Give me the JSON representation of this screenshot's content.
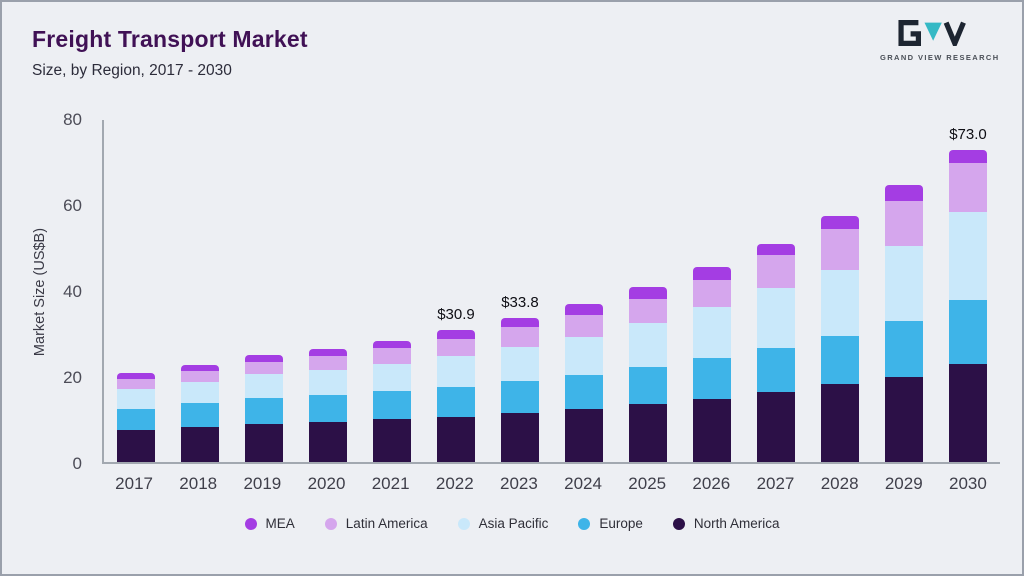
{
  "header": {
    "title": "Freight Transport Market",
    "subtitle": "Size, by Region, 2017 - 2030",
    "logo_text": "GRAND VIEW RESEARCH"
  },
  "chart_data": {
    "type": "bar",
    "stacked": true,
    "title": "Freight Transport Market Size, by Region, 2017 - 2030",
    "xlabel": "",
    "ylabel": "Market Size (US$B)",
    "ylim": [
      0,
      80
    ],
    "yticks": [
      0,
      20,
      40,
      60,
      80
    ],
    "grid": false,
    "legend_position": "bottom",
    "categories": [
      "2017",
      "2018",
      "2019",
      "2020",
      "2021",
      "2022",
      "2023",
      "2024",
      "2025",
      "2026",
      "2027",
      "2028",
      "2029",
      "2030"
    ],
    "series": [
      {
        "name": "North America",
        "color": "#2c1047",
        "values": [
          7.5,
          8.2,
          9.0,
          9.3,
          10.0,
          10.5,
          11.5,
          12.3,
          13.5,
          14.8,
          16.3,
          18.2,
          20.0,
          23.0
        ]
      },
      {
        "name": "Europe",
        "color": "#3eb4e8",
        "values": [
          5.0,
          5.5,
          6.0,
          6.3,
          6.5,
          7.0,
          7.5,
          8.0,
          8.7,
          9.5,
          10.4,
          11.3,
          13.0,
          15.0
        ]
      },
      {
        "name": "Asia Pacific",
        "color": "#c9e8fa",
        "values": [
          4.5,
          5.0,
          5.5,
          6.0,
          6.5,
          7.2,
          8.0,
          9.0,
          10.3,
          12.0,
          14.1,
          15.5,
          17.5,
          20.5
        ]
      },
      {
        "name": "Latin America",
        "color": "#d5a6ed",
        "values": [
          2.5,
          2.7,
          3.0,
          3.3,
          3.6,
          4.0,
          4.5,
          5.0,
          5.7,
          6.2,
          7.7,
          9.5,
          10.5,
          11.5
        ]
      },
      {
        "name": "MEA",
        "color": "#a43de3",
        "values": [
          1.3,
          1.4,
          1.5,
          1.6,
          1.7,
          2.2,
          2.3,
          2.7,
          2.8,
          3.2,
          2.5,
          3.0,
          3.7,
          3.0
        ]
      }
    ],
    "legend_order": [
      "MEA",
      "Latin America",
      "Asia Pacific",
      "Europe",
      "North America"
    ],
    "annotations": {
      "2022": "$30.9",
      "2023": "$33.8",
      "2030": "$73.0"
    }
  },
  "colors": {
    "background": "#edeff3",
    "title": "#401155",
    "axis": "#a2a8b0",
    "logo_teal": "#35b9c5",
    "logo_dark": "#1d2531"
  }
}
